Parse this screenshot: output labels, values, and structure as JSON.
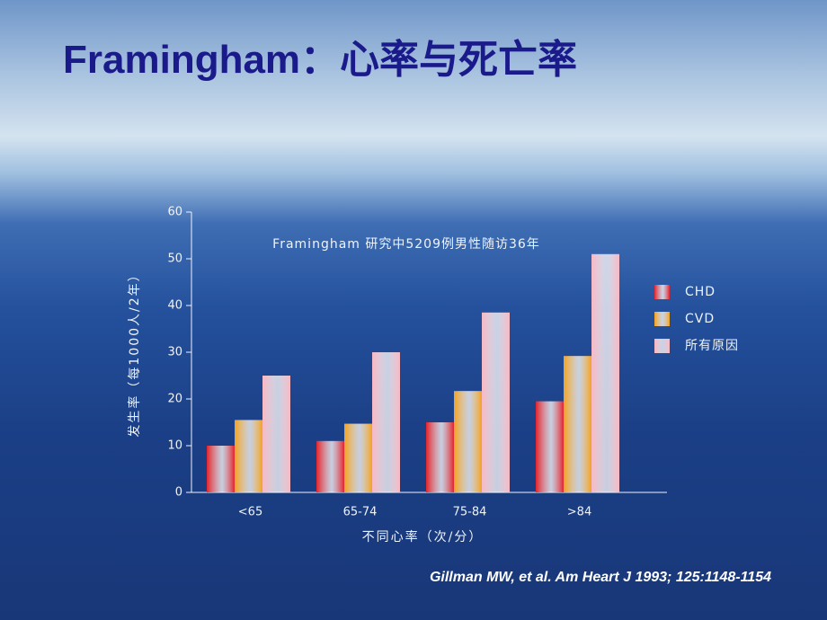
{
  "title": "Framingham：心率与死亡率",
  "citation": "Gillman MW, et al. Am  Heart J  1993; 125:1148-1154",
  "chart_data": {
    "type": "bar",
    "subtitle": "Framingham 研究中5209例男性随访36年",
    "y_label": "发生率（每1000人/2年）",
    "x_label": "不同心率（次/分）",
    "categories": [
      "<65",
      "65-74",
      "75-84",
      ">84"
    ],
    "series": [
      {
        "name": "CHD",
        "color": "#e3232b",
        "values": [
          10,
          11,
          15,
          19.5
        ]
      },
      {
        "name": "CVD",
        "color": "#f4a21e",
        "values": [
          15.5,
          14.7,
          21.7,
          29.2
        ]
      },
      {
        "name": "所有原因",
        "color": "#f8b8c4",
        "values": [
          25,
          30,
          38.5,
          51
        ]
      }
    ],
    "ylim": [
      0,
      60
    ],
    "yticks": [
      0,
      10,
      20,
      30,
      40,
      50,
      60
    ]
  }
}
